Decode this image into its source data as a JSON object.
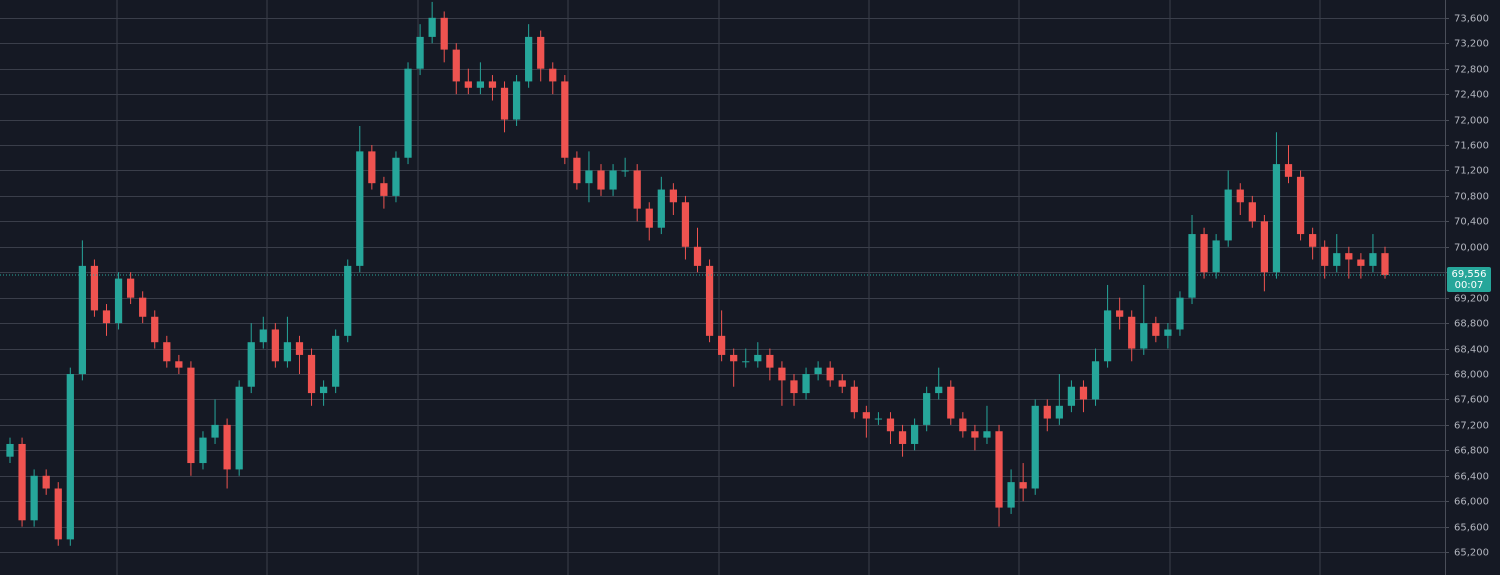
{
  "chart_data": {
    "type": "candlestick",
    "up_color": "#26a69a",
    "down_color": "#ef5350",
    "grid": true,
    "ylim": [
      64840,
      73880
    ],
    "yticks": [
      {
        "value": 65200,
        "label": "65,200"
      },
      {
        "value": 65600,
        "label": "65,600"
      },
      {
        "value": 66000,
        "label": "66,000"
      },
      {
        "value": 66400,
        "label": "66,400"
      },
      {
        "value": 66800,
        "label": "66,800"
      },
      {
        "value": 67200,
        "label": "67,200"
      },
      {
        "value": 67600,
        "label": "67,600"
      },
      {
        "value": 68000,
        "label": "68,000"
      },
      {
        "value": 68400,
        "label": "68,400"
      },
      {
        "value": 68800,
        "label": "68,800"
      },
      {
        "value": 69200,
        "label": "69,200"
      },
      {
        "value": 69600,
        "label": "69,600"
      },
      {
        "value": 70000,
        "label": "70,000"
      },
      {
        "value": 70400,
        "label": "70,400"
      },
      {
        "value": 70800,
        "label": "70,800"
      },
      {
        "value": 71200,
        "label": "71,200"
      },
      {
        "value": 71600,
        "label": "71,600"
      },
      {
        "value": 72000,
        "label": "72,000"
      },
      {
        "value": 72400,
        "label": "72,400"
      },
      {
        "value": 72800,
        "label": "72,800"
      },
      {
        "value": 73200,
        "label": "73,200"
      },
      {
        "value": 73600,
        "label": "73,600"
      }
    ],
    "last_price": {
      "value": 69556,
      "label": "69,556"
    },
    "countdown": "00:07",
    "open": [
      66700,
      66900,
      65700,
      66400,
      66200,
      65400,
      68000,
      69700,
      69000,
      68800,
      69500,
      69200,
      68900,
      68500,
      68200,
      68100,
      66600,
      67000,
      67200,
      66500,
      67800,
      68500,
      68700,
      68200,
      68500,
      68300,
      67700,
      67800,
      68600,
      69700,
      71500,
      71000,
      70800,
      71400,
      72800,
      73300,
      73600,
      73100,
      72600,
      72500,
      72600,
      72500,
      72000,
      72600,
      73300,
      72800,
      72600,
      71400,
      71000,
      71200,
      70900,
      71200,
      71200,
      70600,
      70300,
      70900,
      70700,
      70000,
      69700,
      68600,
      68300,
      68200,
      68200,
      68300,
      68100,
      67900,
      67700,
      68000,
      68100,
      67900,
      67800,
      67400,
      67300,
      67300,
      67100,
      66900,
      67200,
      67700,
      67800,
      67300,
      67100,
      67000,
      67100,
      65900,
      66300,
      66200,
      67500,
      67300,
      67500,
      67800,
      67600,
      68200,
      69000,
      68900,
      68400,
      68800,
      68600,
      68700,
      69200,
      70200,
      69600,
      70100,
      70900,
      70700,
      70400,
      69600,
      71300,
      71100,
      70200,
      70000,
      69700,
      69900,
      69800,
      69700,
      69900
    ],
    "high": [
      67000,
      67000,
      66500,
      66500,
      66300,
      68100,
      70100,
      69800,
      69100,
      69600,
      69600,
      69300,
      69000,
      68600,
      68300,
      68200,
      67100,
      67600,
      67300,
      67900,
      68800,
      68900,
      68800,
      68900,
      68600,
      68400,
      67900,
      68700,
      69800,
      71900,
      71600,
      71100,
      71500,
      72900,
      73500,
      73850,
      73700,
      73200,
      72800,
      72900,
      72700,
      72600,
      72700,
      73500,
      73400,
      72900,
      72700,
      71500,
      71500,
      71300,
      71300,
      71400,
      71300,
      70700,
      71100,
      71000,
      70800,
      70300,
      69800,
      69000,
      68400,
      68400,
      68500,
      68400,
      68200,
      68000,
      68100,
      68200,
      68200,
      68000,
      67900,
      67500,
      67400,
      67400,
      67200,
      67300,
      67800,
      68100,
      67900,
      67400,
      67200,
      67500,
      67200,
      66500,
      66600,
      67600,
      67600,
      68000,
      67900,
      67900,
      68400,
      69400,
      69200,
      69000,
      69400,
      68900,
      68800,
      69300,
      70500,
      70300,
      70200,
      71200,
      71000,
      70800,
      70500,
      71800,
      71600,
      71200,
      70300,
      70100,
      70200,
      70000,
      69900,
      70200,
      70000
    ],
    "low": [
      66600,
      65600,
      65600,
      66100,
      65300,
      65300,
      67900,
      68900,
      68600,
      68700,
      69100,
      68800,
      68400,
      68100,
      68000,
      66400,
      66500,
      66900,
      66200,
      66400,
      67700,
      68400,
      68100,
      68100,
      68000,
      67500,
      67500,
      67700,
      68500,
      69600,
      70900,
      70600,
      70700,
      71300,
      72700,
      73200,
      72900,
      72400,
      72400,
      72400,
      72300,
      71800,
      71900,
      72500,
      72600,
      72400,
      71300,
      70900,
      70700,
      70800,
      70800,
      71100,
      70400,
      70100,
      70200,
      70500,
      69800,
      69600,
      68500,
      68200,
      67800,
      68100,
      68100,
      67900,
      67500,
      67500,
      67600,
      67900,
      67800,
      67700,
      67300,
      67000,
      67200,
      66900,
      66700,
      66800,
      67100,
      67600,
      67200,
      67000,
      66800,
      66900,
      65600,
      65800,
      66000,
      66100,
      67100,
      67200,
      67400,
      67400,
      67500,
      68100,
      68700,
      68200,
      68300,
      68500,
      68400,
      68600,
      69100,
      69500,
      69500,
      70000,
      70500,
      70300,
      69300,
      69500,
      71000,
      70100,
      69800,
      69500,
      69600,
      69500,
      69500,
      69600,
      69500
    ],
    "close": [
      66900,
      65700,
      66400,
      66200,
      65400,
      68000,
      69700,
      69000,
      68800,
      69500,
      69200,
      68900,
      68500,
      68200,
      68100,
      66600,
      67000,
      67200,
      66500,
      67800,
      68500,
      68700,
      68200,
      68500,
      68300,
      67700,
      67800,
      68600,
      69700,
      71500,
      71000,
      70800,
      71400,
      72800,
      73300,
      73600,
      73100,
      72600,
      72500,
      72600,
      72500,
      72000,
      72600,
      73300,
      72800,
      72600,
      71400,
      71000,
      71200,
      70900,
      71200,
      71200,
      70600,
      70300,
      70900,
      70700,
      70000,
      69700,
      68600,
      68300,
      68200,
      68200,
      68300,
      68100,
      67900,
      67700,
      68000,
      68100,
      67900,
      67800,
      67400,
      67300,
      67300,
      67100,
      66900,
      67200,
      67700,
      67800,
      67300,
      67100,
      67000,
      67100,
      65900,
      66300,
      66200,
      67500,
      67300,
      67500,
      67800,
      67600,
      68200,
      69000,
      68900,
      68400,
      68800,
      68600,
      68700,
      69200,
      70200,
      69600,
      70100,
      70900,
      70700,
      70400,
      69600,
      71300,
      71100,
      70200,
      70000,
      69700,
      69900,
      69800,
      69700,
      69900,
      69556
    ]
  }
}
